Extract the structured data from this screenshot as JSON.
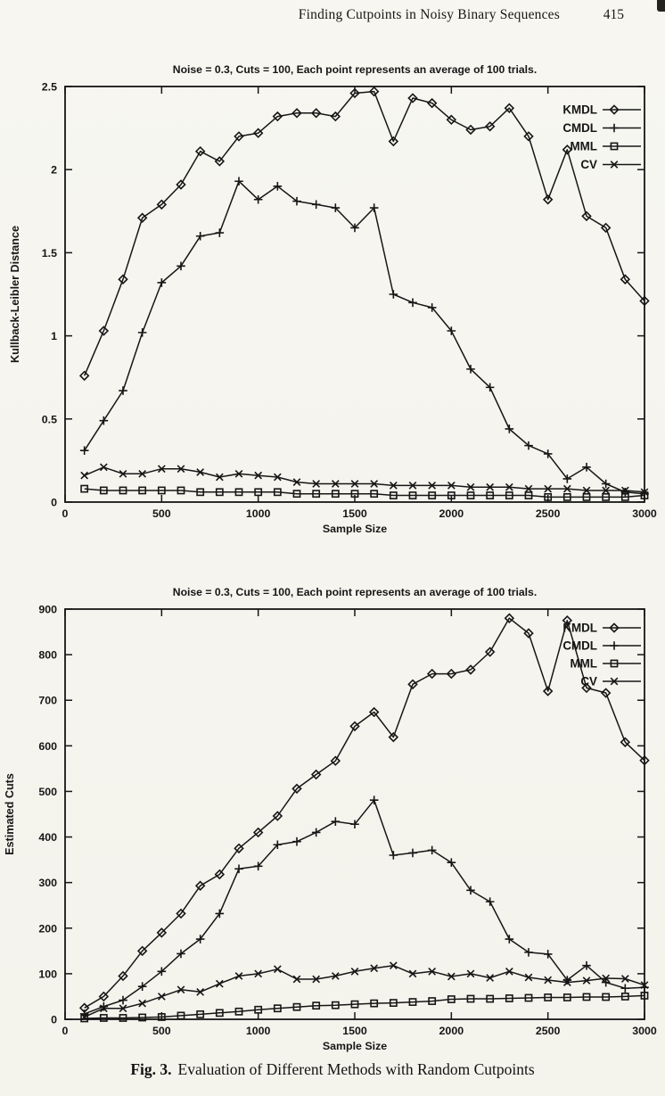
{
  "page": {
    "background_color": "#f6f5f0",
    "ink_color": "#161616",
    "header": {
      "title": "Finding Cutpoints in Noisy Binary Sequences",
      "page_number": "415"
    },
    "caption": {
      "label": "Fig. 3.",
      "text": "Evaluation of Different Methods with Random Cutpoints"
    }
  },
  "chart_data": [
    {
      "type": "line",
      "title": "Noise = 0.3, Cuts = 100, Each point represents an average of 100 trials.",
      "xlabel": "Sample Size",
      "ylabel": "Kullback-Leibler Distance",
      "xlim": [
        0,
        3000
      ],
      "ylim": [
        0,
        2.5
      ],
      "grid": false,
      "legend_position": "top-right",
      "xticks": {
        "values": [
          0,
          500,
          1000,
          1500,
          2000,
          2500,
          3000
        ],
        "labels": [
          "0",
          "500",
          "1000",
          "1500",
          "2000",
          "2500",
          "3000"
        ]
      },
      "yticks": {
        "values": [
          0,
          0.5,
          1,
          1.5,
          2,
          2.5
        ],
        "labels": [
          "0",
          "0.5",
          "1",
          "1.5",
          "2",
          "2.5"
        ]
      },
      "x": [
        100,
        200,
        300,
        400,
        500,
        600,
        700,
        800,
        900,
        1000,
        1100,
        1200,
        1300,
        1400,
        1500,
        1600,
        1700,
        1800,
        1900,
        2000,
        2100,
        2200,
        2300,
        2400,
        2500,
        2600,
        2700,
        2800,
        2900,
        3000
      ],
      "series": [
        {
          "name": "KMDL",
          "marker": "diamond",
          "values": [
            0.76,
            1.03,
            1.34,
            1.71,
            1.79,
            1.91,
            2.11,
            2.05,
            2.2,
            2.22,
            2.32,
            2.34,
            2.34,
            2.32,
            2.46,
            2.47,
            2.17,
            2.43,
            2.4,
            2.3,
            2.24,
            2.26,
            2.37,
            2.2,
            1.82,
            2.12,
            1.72,
            1.65,
            1.34,
            1.21
          ]
        },
        {
          "name": "CMDL",
          "marker": "plus",
          "values": [
            0.31,
            0.49,
            0.67,
            1.02,
            1.32,
            1.42,
            1.6,
            1.62,
            1.93,
            1.82,
            1.9,
            1.81,
            1.79,
            1.77,
            1.65,
            1.77,
            1.25,
            1.2,
            1.17,
            1.03,
            0.8,
            0.69,
            0.44,
            0.34,
            0.29,
            0.14,
            0.21,
            0.11,
            0.06,
            0.05
          ]
        },
        {
          "name": "MML",
          "marker": "square",
          "values": [
            0.08,
            0.07,
            0.07,
            0.07,
            0.07,
            0.07,
            0.06,
            0.06,
            0.06,
            0.06,
            0.06,
            0.05,
            0.05,
            0.05,
            0.05,
            0.05,
            0.04,
            0.04,
            0.04,
            0.04,
            0.04,
            0.04,
            0.04,
            0.04,
            0.03,
            0.03,
            0.03,
            0.03,
            0.03,
            0.04
          ]
        },
        {
          "name": "CV",
          "marker": "cross",
          "values": [
            0.16,
            0.21,
            0.17,
            0.17,
            0.2,
            0.2,
            0.18,
            0.15,
            0.17,
            0.16,
            0.15,
            0.12,
            0.11,
            0.11,
            0.11,
            0.11,
            0.1,
            0.1,
            0.1,
            0.1,
            0.09,
            0.09,
            0.09,
            0.08,
            0.08,
            0.08,
            0.07,
            0.07,
            0.07,
            0.06
          ]
        }
      ]
    },
    {
      "type": "line",
      "title": "Noise = 0.3, Cuts = 100, Each point represents an average of 100 trials.",
      "xlabel": "Sample Size",
      "ylabel": "Estimated Cuts",
      "xlim": [
        0,
        3000
      ],
      "ylim": [
        0,
        900
      ],
      "grid": false,
      "legend_position": "top-right",
      "xticks": {
        "values": [
          0,
          500,
          1000,
          1500,
          2000,
          2500,
          3000
        ],
        "labels": [
          "0",
          "500",
          "1000",
          "1500",
          "2000",
          "2500",
          "3000"
        ]
      },
      "yticks": {
        "values": [
          0,
          100,
          200,
          300,
          400,
          500,
          600,
          700,
          800,
          900
        ],
        "labels": [
          "0",
          "100",
          "200",
          "300",
          "400",
          "500",
          "600",
          "700",
          "800",
          "900"
        ]
      },
      "x": [
        100,
        200,
        300,
        400,
        500,
        600,
        700,
        800,
        900,
        1000,
        1100,
        1200,
        1300,
        1400,
        1500,
        1600,
        1700,
        1800,
        1900,
        2000,
        2100,
        2200,
        2300,
        2400,
        2500,
        2600,
        2700,
        2800,
        2900,
        3000
      ],
      "series": [
        {
          "name": "KMDL",
          "marker": "diamond",
          "values": [
            25,
            50,
            95,
            150,
            190,
            232,
            293,
            318,
            375,
            410,
            446,
            506,
            537,
            567,
            643,
            674,
            619,
            735,
            758,
            758,
            767,
            806,
            880,
            847,
            720,
            875,
            727,
            716,
            608,
            568
          ]
        },
        {
          "name": "CMDL",
          "marker": "plus",
          "values": [
            12,
            28,
            42,
            72,
            105,
            144,
            176,
            232,
            330,
            336,
            383,
            390,
            410,
            434,
            428,
            481,
            360,
            365,
            371,
            344,
            283,
            258,
            176,
            147,
            143,
            86,
            118,
            81,
            68,
            70
          ]
        },
        {
          "name": "MML",
          "marker": "square",
          "values": [
            2,
            3,
            3,
            4,
            5,
            8,
            11,
            14,
            17,
            21,
            24,
            27,
            30,
            31,
            33,
            35,
            36,
            38,
            40,
            44,
            45,
            45,
            46,
            47,
            48,
            48,
            49,
            49,
            50,
            52
          ]
        },
        {
          "name": "CV",
          "marker": "cross",
          "values": [
            5,
            24,
            24,
            35,
            50,
            65,
            60,
            78,
            95,
            100,
            110,
            88,
            88,
            95,
            105,
            112,
            118,
            100,
            105,
            94,
            100,
            91,
            105,
            92,
            86,
            81,
            85,
            90,
            89,
            75
          ]
        }
      ]
    }
  ]
}
